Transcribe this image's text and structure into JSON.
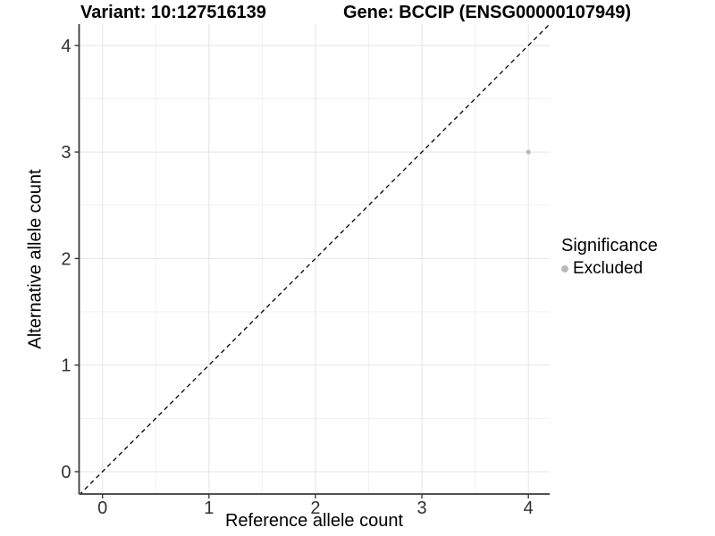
{
  "chart_data": {
    "type": "scatter",
    "titles": {
      "left": "Variant: 10:127516139",
      "right": "Gene: BCCIP (ENSG00000107949)"
    },
    "xlabel": "Reference allele count",
    "ylabel": "Alternative allele count",
    "xlim": [
      -0.22,
      4.2
    ],
    "ylim": [
      -0.21,
      4.2
    ],
    "xticks": [
      0,
      1,
      2,
      3,
      4
    ],
    "yticks": [
      0,
      1,
      2,
      3,
      4
    ],
    "minor_grid_step": 0.5,
    "grid": true,
    "identity_line": {
      "equation": "y = x",
      "style": "dashed",
      "color": "#000000"
    },
    "series": [
      {
        "name": "Excluded",
        "color": "#b9b9b9",
        "points": [
          {
            "x": 4,
            "y": 3
          }
        ]
      }
    ],
    "legend": {
      "title": "Significance",
      "position": "right",
      "entries": [
        {
          "label": "Excluded",
          "color": "#b9b9b9"
        }
      ]
    },
    "colors": {
      "grid_major": "#e4e4e4",
      "grid_minor": "#f1f1f1",
      "axis_line": "#3a3a3a",
      "tick_label": "#303030"
    }
  }
}
